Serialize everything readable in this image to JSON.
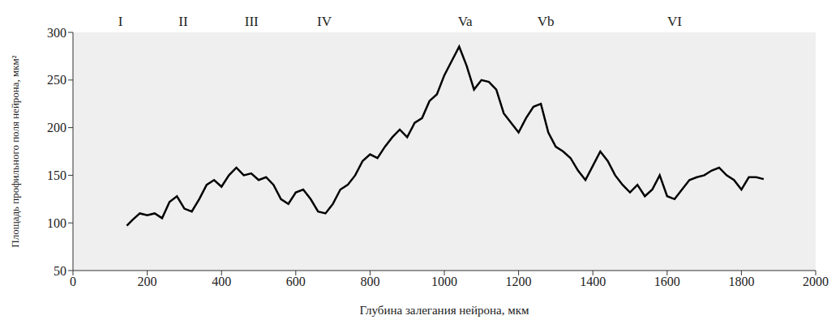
{
  "chart_data": {
    "type": "line",
    "x_label": "Глубина залегания нейрона, мкм",
    "y_label": "Площадь профильного поля нейрона, мкм²",
    "xlim": [
      0,
      2000
    ],
    "xticks": [
      0,
      200,
      400,
      600,
      800,
      1000,
      1200,
      1400,
      1600,
      1800,
      2000
    ],
    "ylim": [
      50,
      300
    ],
    "yticks": [
      50,
      100,
      150,
      200,
      250,
      300
    ],
    "color": "#000000",
    "annotations": [
      {
        "text": "I",
        "x": 128
      },
      {
        "text": "II",
        "x": 297
      },
      {
        "text": "III",
        "x": 481
      },
      {
        "text": "IV",
        "x": 677
      },
      {
        "text": "Va",
        "x": 1056
      },
      {
        "text": "Vb",
        "x": 1273
      },
      {
        "text": "VI",
        "x": 1620
      }
    ],
    "x": [
      145,
      160,
      180,
      200,
      220,
      240,
      260,
      280,
      300,
      320,
      340,
      360,
      380,
      400,
      420,
      440,
      460,
      480,
      500,
      520,
      540,
      560,
      580,
      600,
      620,
      640,
      660,
      680,
      700,
      720,
      740,
      760,
      780,
      800,
      820,
      840,
      860,
      880,
      900,
      920,
      940,
      960,
      980,
      1000,
      1020,
      1040,
      1060,
      1080,
      1100,
      1120,
      1140,
      1160,
      1180,
      1200,
      1220,
      1240,
      1260,
      1280,
      1300,
      1320,
      1340,
      1360,
      1380,
      1400,
      1420,
      1440,
      1460,
      1480,
      1500,
      1520,
      1540,
      1560,
      1580,
      1600,
      1620,
      1640,
      1660,
      1680,
      1700,
      1720,
      1740,
      1760,
      1780,
      1800,
      1820,
      1840,
      1860
    ],
    "values": [
      97,
      103,
      110,
      108,
      110,
      105,
      122,
      128,
      115,
      112,
      125,
      140,
      145,
      138,
      150,
      158,
      150,
      152,
      145,
      148,
      140,
      125,
      120,
      132,
      135,
      125,
      112,
      110,
      120,
      135,
      140,
      150,
      165,
      172,
      168,
      180,
      190,
      198,
      190,
      205,
      210,
      228,
      235,
      255,
      270,
      285,
      265,
      240,
      250,
      248,
      240,
      215,
      205,
      195,
      210,
      222,
      225,
      195,
      180,
      175,
      168,
      155,
      145,
      160,
      175,
      165,
      150,
      140,
      132,
      140,
      128,
      135,
      150,
      128,
      125,
      135,
      145,
      148,
      150,
      155,
      158,
      150,
      145,
      135,
      148,
      148,
      146
    ]
  }
}
